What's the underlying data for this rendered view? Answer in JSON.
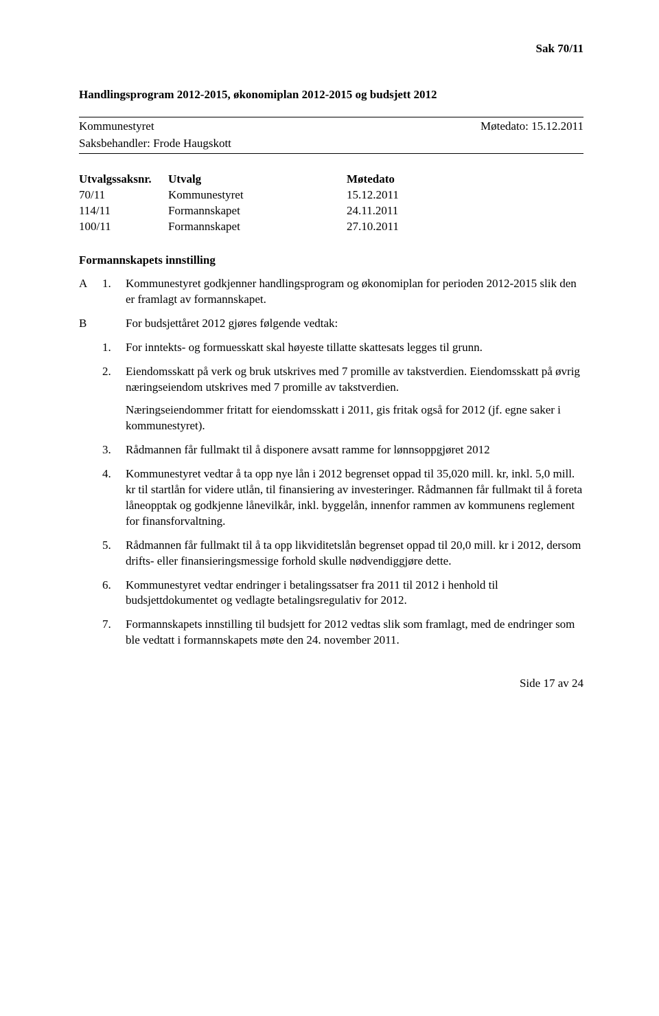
{
  "sak_ref": "Sak  70/11",
  "title": "Handlingsprogram 2012-2015, økonomiplan 2012-2015 og budsjett 2012",
  "header": {
    "organ": "Kommunestyret",
    "motedato_label": "Møtedato: 15.12.2011",
    "saksbeh_label": "Saksbehandler: Frode Haugskott"
  },
  "utvalg": {
    "head_nr": "Utvalgssaksnr.",
    "head_utv": "Utvalg",
    "head_date": "Møtedato",
    "rows": [
      {
        "nr": "70/11",
        "utv": "Kommunestyret",
        "date": "15.12.2011"
      },
      {
        "nr": "114/11",
        "utv": "Formannskapet",
        "date": "24.11.2011"
      },
      {
        "nr": "100/11",
        "utv": "Formannskapet",
        "date": "27.10.2011"
      }
    ]
  },
  "innstilling_heading": "Formannskapets innstilling",
  "A": {
    "marker": "A",
    "num": "1.",
    "text": "Kommunestyret godkjenner handlingsprogram og økonomiplan for perioden 2012-2015 slik den er framlagt av formannskapet."
  },
  "B": {
    "marker": "B",
    "text": "For budsjettåret 2012 gjøres følgende vedtak:"
  },
  "pts": {
    "p1": {
      "num": "1.",
      "text": "For inntekts- og formuesskatt skal høyeste tillatte skattesats legges til grunn."
    },
    "p2": {
      "num": "2.",
      "text": "Eiendomsskatt på verk og bruk utskrives med 7 promille av takstverdien. Eiendomsskatt på øvrig næringseiendom utskrives med 7 promille av takstverdien.",
      "text2": "Næringseiendommer fritatt for eiendomsskatt i 2011, gis fritak også for 2012 (jf. egne saker i kommunestyret)."
    },
    "p3": {
      "num": "3.",
      "text": "Rådmannen får fullmakt til å disponere avsatt ramme for lønnsoppgjøret 2012"
    },
    "p4": {
      "num": "4.",
      "text": "Kommunestyret vedtar å ta opp nye lån i 2012 begrenset oppad til 35,020 mill. kr, inkl. 5,0 mill. kr til startlån for videre utlån, til finansiering av investeringer. Rådmannen får fullmakt til å foreta låneopptak og godkjenne lånevilkår, inkl. byggelån, innenfor rammen av kommunens reglement for finansforvaltning."
    },
    "p5": {
      "num": "5.",
      "text": "Rådmannen får fullmakt til å ta opp likviditetslån begrenset oppad til 20,0 mill. kr i 2012, dersom drifts- eller finansieringsmessige forhold skulle nødvendiggjøre dette."
    },
    "p6": {
      "num": "6.",
      "text": "Kommunestyret vedtar endringer i betalingssatser fra 2011 til 2012 i henhold til budsjettdokumentet og vedlagte betalingsregulativ for 2012."
    },
    "p7": {
      "num": "7.",
      "text": "Formannskapets innstilling til budsjett for 2012 vedtas slik som framlagt, med de endringer som ble vedtatt i formannskapets møte den 24. november 2011."
    }
  },
  "footer": "Side 17 av 24"
}
